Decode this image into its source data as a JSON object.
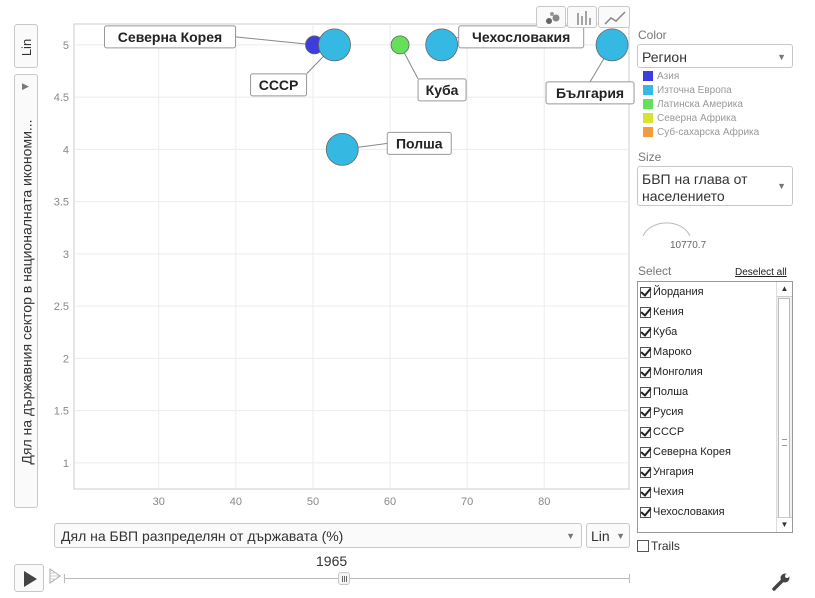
{
  "chart_data": {
    "type": "scatter",
    "xlabel": "Дял на БВП разпределян от държавата (%)",
    "ylabel": "Дял на държавния сектор в националната икономи...",
    "x_ticks": [
      30,
      40,
      50,
      60,
      70,
      80
    ],
    "y_ticks": [
      1,
      1.5,
      2,
      2.5,
      3,
      3.5,
      4,
      4.5,
      5
    ],
    "xlim": [
      19,
      91
    ],
    "ylim": [
      0.75,
      5.2
    ],
    "points": [
      {
        "label": "Северна Корея",
        "x": 50.2,
        "y": 5,
        "region": "Азия",
        "size": "small"
      },
      {
        "label": "СССР",
        "x": 52.8,
        "y": 5,
        "region": "Източна Европа",
        "size": "large"
      },
      {
        "label": "Куба",
        "x": 61.3,
        "y": 5,
        "region": "Латинска Америка",
        "size": "small"
      },
      {
        "label": "Чехословакия",
        "x": 66.7,
        "y": 5,
        "region": "Източна Европа",
        "size": "large"
      },
      {
        "label": "България",
        "x": 88.8,
        "y": 5,
        "region": "Източна Европа",
        "size": "large"
      },
      {
        "label": "Полша",
        "x": 53.8,
        "y": 4,
        "region": "Източна Европа",
        "size": "large"
      }
    ]
  },
  "axis": {
    "y_scale": "Lin",
    "x_scale": "Lin",
    "x_selector": "Дял на БВП разпределян от държавата (%)",
    "y_selector": "Дял на държавния сектор в националната икономи..."
  },
  "color_panel": {
    "title": "Color",
    "selected": "Регион",
    "legend": [
      {
        "name": "Азия",
        "color": "#3d3dde"
      },
      {
        "name": "Източна Европа",
        "color": "#35b9e3"
      },
      {
        "name": "Латинска Америка",
        "color": "#66e05a"
      },
      {
        "name": "Северна Африка",
        "color": "#d8e330"
      },
      {
        "name": "Суб-сахарска Африка",
        "color": "#f59b3b"
      }
    ]
  },
  "size_panel": {
    "title": "Size",
    "selected": "БВП на глава от населението",
    "value": "10770.7"
  },
  "select_panel": {
    "title": "Select",
    "deselect_label": "Deselect all",
    "items": [
      "Йордания",
      "Кения",
      "Куба",
      "Мароко",
      "Монголия",
      "Полша",
      "Русия",
      "СССР",
      "Северна Корея",
      "Унгария",
      "Чехия",
      "Чехословакия"
    ]
  },
  "trails_label": "Trails",
  "timeline": {
    "year": "1965",
    "position": 0.495
  }
}
